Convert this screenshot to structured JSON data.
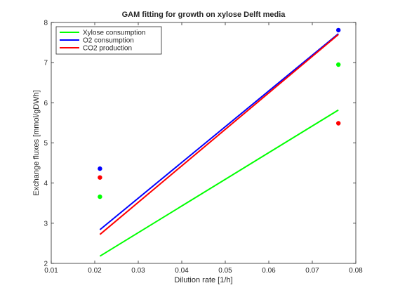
{
  "chart_data": {
    "type": "line",
    "title": "GAM fitting for growth on xylose Delft media",
    "xlabel": "Dilution rate [1/h]",
    "ylabel": "Exchange fluxes [mmol/gDWh]",
    "xlim": [
      0.01,
      0.08
    ],
    "ylim": [
      2,
      8
    ],
    "xticks": [
      0.01,
      0.02,
      0.03,
      0.04,
      0.05,
      0.06,
      0.07,
      0.08
    ],
    "xtick_labels": [
      "0.01",
      "0.02",
      "0.03",
      "0.04",
      "0.05",
      "0.06",
      "0.07",
      "0.08"
    ],
    "yticks": [
      2,
      3,
      4,
      5,
      6,
      7,
      8
    ],
    "ytick_labels": [
      "2",
      "3",
      "4",
      "5",
      "6",
      "7",
      "8"
    ],
    "grid": false,
    "legend_position": "top-left",
    "series": [
      {
        "name": "Xylose consumption",
        "color": "#00ff00",
        "line_x": [
          0.0212,
          0.076
        ],
        "line_y": [
          2.18,
          5.82
        ],
        "points_x": [
          0.0212,
          0.076
        ],
        "points_y": [
          3.66,
          6.95
        ]
      },
      {
        "name": "O2 consumption",
        "color": "#0000ff",
        "line_x": [
          0.0212,
          0.076
        ],
        "line_y": [
          2.84,
          7.72
        ],
        "points_x": [
          0.0212,
          0.076
        ],
        "points_y": [
          4.36,
          7.81
        ]
      },
      {
        "name": "CO2 production",
        "color": "#ff0000",
        "line_x": [
          0.0212,
          0.076
        ],
        "line_y": [
          2.72,
          7.7
        ],
        "points_x": [
          0.0212,
          0.076
        ],
        "points_y": [
          4.14,
          5.49
        ]
      }
    ]
  }
}
